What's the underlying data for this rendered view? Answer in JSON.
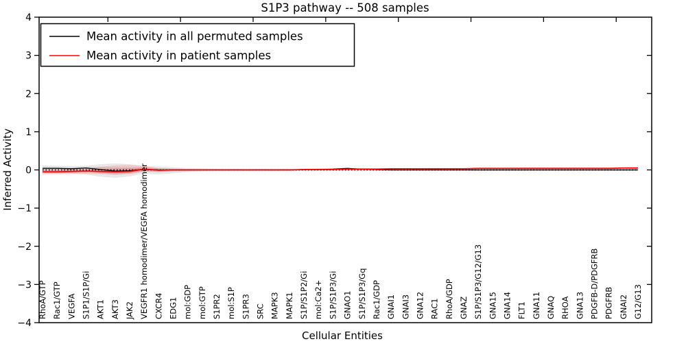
{
  "chart_data": {
    "type": "line",
    "title": "S1P3 pathway -- 508 samples",
    "xlabel": "Cellular Entities",
    "ylabel": "Inferred Activity",
    "ylim": [
      -4,
      4
    ],
    "y_tick_values": [
      4,
      3,
      2,
      1,
      0,
      -1,
      -2,
      -3,
      -4
    ],
    "y_tick_labels": [
      "4",
      "3",
      "2",
      "1",
      "0",
      "−1",
      "−2",
      "−3",
      "−4"
    ],
    "grid": false,
    "legend_position": "upper left",
    "reference_line": {
      "value": 0,
      "style": "dotted",
      "color": "#000000"
    },
    "categories": [
      "RhoA/GTP",
      "Rac1/GTP",
      "VEGFA",
      "S1P1/S1P/Gi",
      "AKT1",
      "AKT3",
      "JAK2",
      "VEGFR1 homodimer/VEGFA homodimer",
      "CXCR4",
      "EDG1",
      "mol:GDP",
      "mol:GTP",
      "S1PR2",
      "mol:S1P",
      "S1PR3",
      "SRC",
      "MAPK3",
      "MAPK1",
      "S1P/S1P2/Gi",
      "mol:Ca2+",
      "S1P/S1P3/Gi",
      "GNAO1",
      "S1P/S1P3/Gq",
      "Rac1/GDP",
      "GNAI1",
      "GNAI3",
      "GNA12",
      "RAC1",
      "RhoA/GDP",
      "GNAZ",
      "S1P/S1P3/G12/G13",
      "GNA15",
      "GNA14",
      "FLT1",
      "GNA11",
      "GNAQ",
      "RHOA",
      "GNA13",
      "PDGFB-D/PDGFRB",
      "PDGFRB",
      "GNAI2",
      "G12/G13"
    ],
    "series": [
      {
        "name": "Mean activity in all permuted samples",
        "color": "#000000",
        "band_color": "#999999",
        "values": [
          0.04,
          0.04,
          0.03,
          0.05,
          0.01,
          -0.03,
          -0.02,
          0.02,
          0.0,
          0.0,
          0.0,
          0.0,
          0.0,
          0.0,
          0.0,
          0.0,
          0.0,
          0.0,
          0.01,
          0.01,
          0.02,
          0.04,
          0.02,
          0.01,
          0.0,
          0.0,
          0.0,
          0.0,
          0.0,
          0.0,
          0.0,
          0.0,
          0.0,
          0.0,
          0.0,
          0.0,
          0.0,
          0.0,
          0.0,
          0.0,
          0.0,
          0.0
        ],
        "band_upper": [
          0.12,
          0.11,
          0.1,
          0.11,
          0.15,
          0.17,
          0.15,
          0.1,
          0.09,
          0.07,
          0.05,
          0.04,
          0.03,
          0.03,
          0.03,
          0.03,
          0.03,
          0.03,
          0.03,
          0.04,
          0.05,
          0.06,
          0.05,
          0.04,
          0.03,
          0.03,
          0.03,
          0.03,
          0.03,
          0.03,
          0.03,
          0.03,
          0.03,
          0.03,
          0.03,
          0.03,
          0.03,
          0.03,
          0.03,
          0.03,
          0.03,
          0.04
        ],
        "band_lower": [
          -0.08,
          -0.08,
          -0.09,
          -0.12,
          -0.18,
          -0.21,
          -0.17,
          -0.1,
          -0.12,
          -0.09,
          -0.06,
          -0.04,
          -0.03,
          -0.03,
          -0.03,
          -0.03,
          -0.03,
          -0.03,
          -0.03,
          -0.03,
          -0.03,
          -0.03,
          -0.03,
          -0.03,
          -0.03,
          -0.03,
          -0.03,
          -0.03,
          -0.03,
          -0.03,
          -0.03,
          -0.03,
          -0.03,
          -0.03,
          -0.03,
          -0.03,
          -0.03,
          -0.03,
          -0.03,
          -0.03,
          -0.03,
          -0.03
        ]
      },
      {
        "name": "Mean activity in patient samples",
        "color": "#ff0000",
        "band_color": "#ff5555",
        "values": [
          -0.05,
          -0.05,
          -0.04,
          -0.03,
          -0.04,
          -0.05,
          -0.04,
          0.02,
          -0.01,
          0.0,
          0.0,
          0.0,
          0.0,
          0.0,
          0.0,
          0.0,
          0.0,
          0.0,
          0.01,
          0.01,
          0.01,
          0.02,
          0.02,
          0.02,
          0.03,
          0.03,
          0.03,
          0.03,
          0.03,
          0.03,
          0.04,
          0.04,
          0.04,
          0.04,
          0.04,
          0.04,
          0.04,
          0.04,
          0.04,
          0.04,
          0.05,
          0.05
        ],
        "band_upper": [
          0.02,
          0.02,
          0.02,
          0.03,
          0.08,
          0.12,
          0.13,
          0.11,
          0.05,
          0.03,
          0.02,
          0.02,
          0.02,
          0.02,
          0.02,
          0.02,
          0.02,
          0.02,
          0.02,
          0.03,
          0.03,
          0.04,
          0.04,
          0.04,
          0.04,
          0.04,
          0.05,
          0.05,
          0.05,
          0.05,
          0.05,
          0.05,
          0.05,
          0.06,
          0.06,
          0.06,
          0.06,
          0.06,
          0.06,
          0.06,
          0.07,
          0.08
        ],
        "band_lower": [
          -0.12,
          -0.12,
          -0.11,
          -0.1,
          -0.11,
          -0.13,
          -0.11,
          -0.05,
          -0.05,
          -0.03,
          -0.02,
          -0.02,
          -0.02,
          -0.02,
          -0.02,
          -0.02,
          -0.02,
          -0.02,
          -0.01,
          -0.01,
          -0.01,
          0.0,
          0.0,
          0.0,
          0.0,
          0.01,
          0.01,
          0.01,
          0.01,
          0.01,
          0.02,
          0.02,
          0.02,
          0.02,
          0.02,
          0.02,
          0.02,
          0.02,
          0.02,
          0.02,
          0.03,
          0.03
        ]
      }
    ]
  }
}
